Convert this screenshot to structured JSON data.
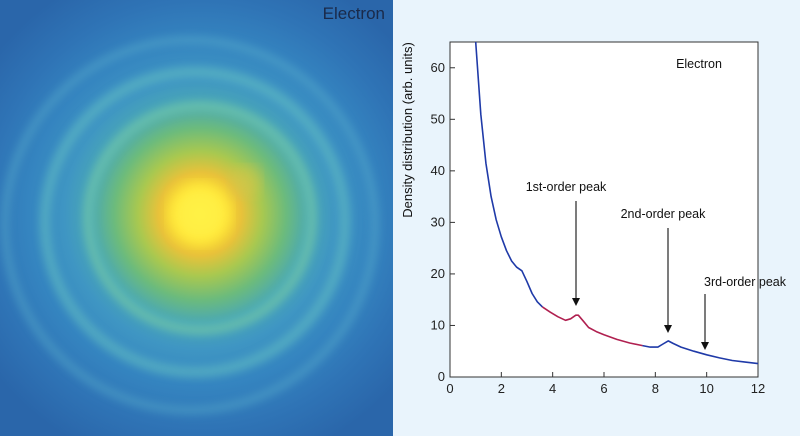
{
  "image_panel": {
    "label": "Electron",
    "colors": {
      "background": "#2f6cb0",
      "center": "#fff23a",
      "ring": "#5fbccb"
    }
  },
  "chart_data": {
    "type": "line",
    "title": "",
    "inset_label": "Electron",
    "xlabel": "",
    "ylabel": "Density distribution (arb. units)",
    "xlim": [
      0,
      12
    ],
    "ylim": [
      0,
      65
    ],
    "xticks": [
      0,
      2,
      4,
      6,
      8,
      10,
      12
    ],
    "yticks": [
      0,
      10,
      20,
      30,
      40,
      50,
      60
    ],
    "grid": false,
    "series": [
      {
        "color": "#1f3aa8",
        "x": [
          1.0,
          1.2,
          1.4,
          1.6,
          1.8,
          2.0,
          2.2,
          2.4,
          2.6,
          2.8,
          3.0,
          3.2,
          3.4,
          3.6
        ],
        "y": [
          65.0,
          51.0,
          41.5,
          35.0,
          30.5,
          27.2,
          24.5,
          22.5,
          21.3,
          20.6,
          18.5,
          16.2,
          14.6,
          13.6
        ]
      },
      {
        "color": "#b02050",
        "x": [
          3.6,
          3.9,
          4.2,
          4.5,
          4.7,
          4.9,
          5.0,
          5.2,
          5.4,
          5.7,
          6.0,
          6.5,
          7.0,
          7.5
        ],
        "y": [
          13.6,
          12.6,
          11.7,
          11.0,
          11.3,
          12.0,
          12.0,
          10.8,
          9.6,
          8.8,
          8.2,
          7.3,
          6.6,
          6.1
        ]
      },
      {
        "color": "#1f3aa8",
        "x": [
          7.5,
          7.8,
          8.1,
          8.3,
          8.5,
          8.7,
          9.0,
          9.5,
          10.0,
          10.5,
          11.0,
          11.5,
          12.0
        ],
        "y": [
          6.1,
          5.8,
          5.8,
          6.4,
          7.0,
          6.5,
          5.8,
          5.0,
          4.3,
          3.7,
          3.2,
          2.9,
          2.6
        ]
      }
    ],
    "annotations": [
      {
        "text": "1st-order peak",
        "x": 4.9,
        "y": 12.0
      },
      {
        "text": "2nd-order peak",
        "x": 8.5,
        "y": 7.0
      },
      {
        "text": "3rd-order peak",
        "x": 9.9,
        "y": 4.6
      }
    ]
  }
}
